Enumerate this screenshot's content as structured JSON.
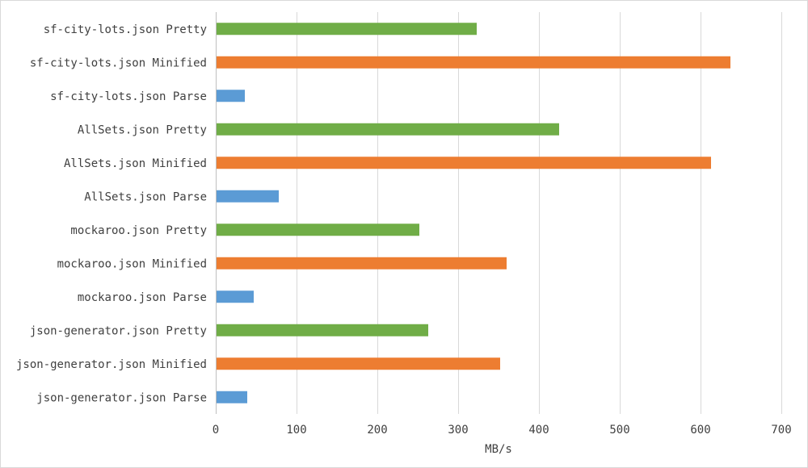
{
  "chart_data": {
    "type": "bar",
    "orientation": "horizontal",
    "title": "",
    "xlabel": "MB/s",
    "ylabel": "",
    "xlim": [
      0,
      700
    ],
    "xticks": [
      0,
      100,
      200,
      300,
      400,
      500,
      600,
      700
    ],
    "grid": "vertical",
    "legend": "none",
    "categories": [
      "sf-city-lots.json Pretty",
      "sf-city-lots.json Minified",
      "sf-city-lots.json Parse",
      "AllSets.json Pretty",
      "AllSets.json Minified",
      "AllSets.json Parse",
      "mockaroo.json Pretty",
      "mockaroo.json Minified",
      "mockaroo.json Parse",
      "json-generator.json Pretty",
      "json-generator.json Minified",
      "json-generator.json Parse"
    ],
    "values": [
      322,
      636,
      35,
      424,
      612,
      77,
      251,
      359,
      46,
      262,
      351,
      38
    ],
    "colors": {
      "Pretty": "#70ad47",
      "Minified": "#ed7d31",
      "Parse": "#5b9bd5",
      "grid": "#d9d9d9",
      "axis": "#bfbfbf",
      "text": "#404040"
    }
  }
}
